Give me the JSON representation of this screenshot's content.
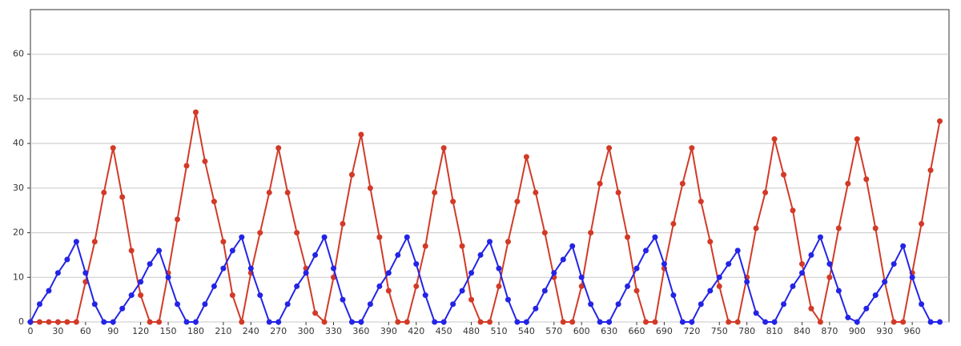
{
  "chart_data": {
    "type": "line",
    "x": [
      0,
      10,
      20,
      30,
      40,
      50,
      60,
      70,
      80,
      90,
      100,
      110,
      120,
      130,
      140,
      150,
      160,
      170,
      180,
      190,
      200,
      210,
      220,
      230,
      240,
      250,
      260,
      270,
      280,
      290,
      300,
      310,
      320,
      330,
      340,
      350,
      360,
      370,
      380,
      390,
      400,
      410,
      420,
      430,
      440,
      450,
      460,
      470,
      480,
      490,
      500,
      510,
      520,
      530,
      540,
      550,
      560,
      570,
      580,
      590,
      600,
      610,
      620,
      630,
      640,
      650,
      660,
      670,
      680,
      690,
      700,
      710,
      720,
      730,
      740,
      750,
      760,
      770,
      780,
      790,
      800,
      810,
      820,
      830,
      840,
      850,
      860,
      870,
      880,
      890,
      900,
      910,
      920,
      930,
      940,
      950,
      960,
      970,
      980,
      990
    ],
    "series": [
      {
        "color": "#d23a27",
        "values": [
          0,
          0,
          0,
          0,
          0,
          0,
          9,
          18,
          29,
          39,
          28,
          16,
          6,
          0,
          0,
          11,
          23,
          35,
          47,
          36,
          27,
          18,
          6,
          0,
          11,
          20,
          29,
          39,
          29,
          20,
          12,
          2,
          0,
          10,
          22,
          33,
          42,
          30,
          19,
          7,
          0,
          0,
          8,
          17,
          29,
          39,
          27,
          17,
          5,
          0,
          0,
          8,
          18,
          27,
          37,
          29,
          20,
          10,
          0,
          0,
          8,
          20,
          31,
          39,
          29,
          19,
          7,
          0,
          0,
          12,
          22,
          31,
          39,
          27,
          18,
          8,
          0,
          0,
          10,
          21,
          29,
          41,
          33,
          25,
          13,
          3,
          0,
          10,
          21,
          31,
          41,
          32,
          21,
          9,
          0,
          0,
          11,
          22,
          34,
          45
        ]
      },
      {
        "color": "#2424e6",
        "values": [
          0,
          4,
          7,
          11,
          14,
          18,
          11,
          4,
          0,
          0,
          3,
          6,
          9,
          13,
          16,
          10,
          4,
          0,
          0,
          4,
          8,
          12,
          16,
          19,
          12,
          6,
          0,
          0,
          4,
          8,
          11,
          15,
          19,
          12,
          5,
          0,
          0,
          4,
          8,
          11,
          15,
          19,
          13,
          6,
          0,
          0,
          4,
          7,
          11,
          15,
          18,
          12,
          5,
          0,
          0,
          3,
          7,
          11,
          14,
          17,
          10,
          4,
          0,
          0,
          4,
          8,
          12,
          16,
          19,
          13,
          6,
          0,
          0,
          4,
          7,
          10,
          13,
          16,
          9,
          2,
          0,
          0,
          4,
          8,
          11,
          15,
          19,
          13,
          7,
          1,
          0,
          3,
          6,
          9,
          13,
          17,
          10,
          4,
          0,
          0
        ]
      }
    ],
    "xlim": [
      0,
      1000
    ],
    "ylim": [
      0,
      70
    ],
    "xticks": [
      0,
      30,
      60,
      90,
      120,
      150,
      180,
      210,
      240,
      270,
      300,
      330,
      360,
      390,
      420,
      450,
      480,
      510,
      540,
      570,
      600,
      630,
      660,
      690,
      720,
      750,
      780,
      810,
      840,
      870,
      900,
      930,
      960
    ],
    "yticks": [
      0,
      10,
      20,
      30,
      40,
      50,
      60
    ],
    "grid": true
  }
}
